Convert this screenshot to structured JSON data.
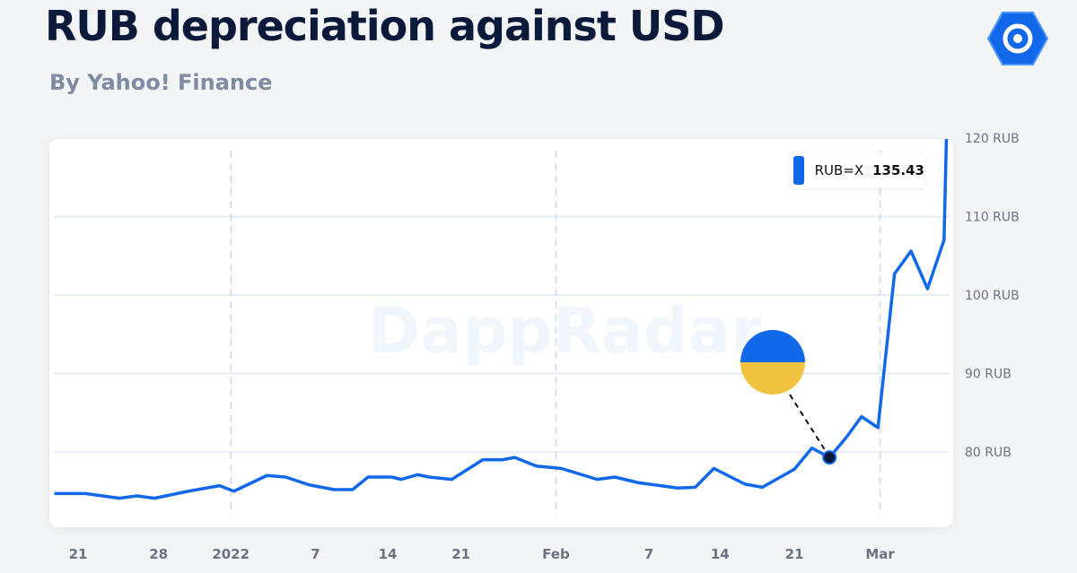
{
  "header": {
    "title": "RUB depreciation against USD",
    "subtitle": "By Yahoo! Finance"
  },
  "watermark": "DappRadar",
  "legend": {
    "name": "RUB=X",
    "value": "135.43"
  },
  "colors": {
    "line": "#1168e8",
    "flag_blue": "#1168e8",
    "flag_yellow": "#f0c23e"
  },
  "chart_data": {
    "type": "line",
    "title": "RUB depreciation against USD",
    "xlabel": "",
    "ylabel": "",
    "ylim": [
      70,
      120
    ],
    "x_ticks": [
      {
        "label": "21",
        "x": 0
      },
      {
        "label": "28",
        "x": 7.8
      },
      {
        "label": "2022",
        "x": 14.8
      },
      {
        "label": "7",
        "x": 23
      },
      {
        "label": "14",
        "x": 30
      },
      {
        "label": "21",
        "x": 37.1
      },
      {
        "label": "Feb",
        "x": 46.3
      },
      {
        "label": "7",
        "x": 55.3
      },
      {
        "label": "14",
        "x": 62.2
      },
      {
        "label": "21",
        "x": 69.4
      },
      {
        "label": "Mar",
        "x": 77.7
      }
    ],
    "y_ticks": [
      {
        "label": "80 RUB",
        "y": 80
      },
      {
        "label": "90 RUB",
        "y": 90
      },
      {
        "label": "100 RUB",
        "y": 100
      },
      {
        "label": "110 RUB",
        "y": 110
      },
      {
        "label": "120 RUB",
        "y": 120
      }
    ],
    "vlines": [
      14.8,
      46.3,
      77.7
    ],
    "series": [
      {
        "name": "RUB=X",
        "x": [
          -2.3,
          0.7,
          4.0,
          5.7,
          7.4,
          10.7,
          13.7,
          15.1,
          18.3,
          20.1,
          22.4,
          24.8,
          26.6,
          28.1,
          30.4,
          31.3,
          32.9,
          34.0,
          36.2,
          39.2,
          41.1,
          42.3,
          44.4,
          46.8,
          50.3,
          52.0,
          54.2,
          58.1,
          59.8,
          61.6,
          64.6,
          66.3,
          69.4,
          71.1,
          72.8,
          74.4,
          75.9,
          77.5,
          79.1,
          80.7,
          82.3,
          83.9,
          84.4
        ],
        "y": [
          74.7,
          74.7,
          74.1,
          74.4,
          74.1,
          75.0,
          75.7,
          75.0,
          77.0,
          76.8,
          75.8,
          75.2,
          75.2,
          76.8,
          76.8,
          76.5,
          77.1,
          76.8,
          76.5,
          79.0,
          79.0,
          79.3,
          78.2,
          77.9,
          76.5,
          76.8,
          76.1,
          75.4,
          75.5,
          77.9,
          75.9,
          75.5,
          77.8,
          80.5,
          79.3,
          81.8,
          84.5,
          83.1,
          102.7,
          105.6,
          100.8,
          107.0,
          135.43
        ]
      }
    ],
    "annotation": {
      "x": 72.8,
      "y": 79.3,
      "label": "Ukraine flag marker"
    }
  }
}
